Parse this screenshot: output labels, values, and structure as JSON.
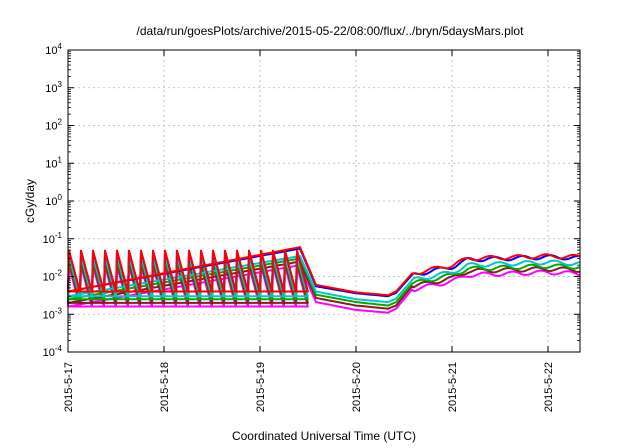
{
  "chart_data": {
    "type": "line",
    "title": "/data/run/goesPlots/archive/2015-05-22/08:00/flux/../bryn/5daysMars.plot",
    "xlabel": "Coordinated Universal Time (UTC)",
    "ylabel": "cGy/day",
    "y_scale": "log",
    "ylim": [
      0.0001,
      10000
    ],
    "xlim": [
      "2015-05-17 00:00",
      "2015-05-22 08:00"
    ],
    "x_ticks": [
      "2015-5-17",
      "2015-5-18",
      "2015-5-19",
      "2015-5-20",
      "2015-5-21",
      "2015-5-22"
    ],
    "y_ticks": [
      {
        "base": "10",
        "exp": "-4",
        "value": 0.0001
      },
      {
        "base": "10",
        "exp": "-3",
        "value": 0.001
      },
      {
        "base": "10",
        "exp": "-2",
        "value": 0.01
      },
      {
        "base": "10",
        "exp": "-1",
        "value": 0.1
      },
      {
        "base": "10",
        "exp": "0",
        "value": 1
      },
      {
        "base": "10",
        "exp": "1",
        "value": 10
      },
      {
        "base": "10",
        "exp": "2",
        "value": 100
      },
      {
        "base": "10",
        "exp": "3",
        "value": 1000
      },
      {
        "base": "10",
        "exp": "4",
        "value": 10000
      }
    ],
    "grid": true,
    "legend": "none",
    "series": [
      {
        "color": "#ff0000",
        "values": [
          [
            "2015-05-17 00:00",
            0.004
          ],
          [
            "2015-05-19 10:00",
            0.06
          ],
          [
            "2015-05-19 14:00",
            0.006
          ],
          [
            "2015-05-20 00:00",
            0.0038
          ],
          [
            "2015-05-20 08:00",
            0.0032
          ],
          [
            "2015-05-20 10:00",
            0.004
          ],
          [
            "2015-05-20 14:00",
            0.012
          ],
          [
            "2015-05-21 00:00",
            0.02
          ],
          [
            "2015-05-21 04:00",
            0.03
          ],
          [
            "2015-05-22 00:00",
            0.035
          ],
          [
            "2015-05-22 08:00",
            0.033
          ]
        ]
      },
      {
        "color": "#0000ff",
        "values": [
          [
            "2015-05-17 00:00",
            0.004
          ],
          [
            "2015-05-19 10:00",
            0.055
          ],
          [
            "2015-05-19 14:00",
            0.0055
          ],
          [
            "2015-05-20 00:00",
            0.0036
          ],
          [
            "2015-05-20 08:00",
            0.003
          ],
          [
            "2015-05-20 10:00",
            0.0037
          ],
          [
            "2015-05-20 14:00",
            0.011
          ],
          [
            "2015-05-21 00:00",
            0.018
          ],
          [
            "2015-05-21 04:00",
            0.028
          ],
          [
            "2015-05-22 00:00",
            0.033
          ],
          [
            "2015-05-22 08:00",
            0.031
          ]
        ]
      },
      {
        "color": "#00c8c8",
        "values": [
          [
            "2015-05-17 00:00",
            0.003
          ],
          [
            "2015-05-19 10:00",
            0.035
          ],
          [
            "2015-05-19 14:00",
            0.004
          ],
          [
            "2015-05-20 00:00",
            0.0025
          ],
          [
            "2015-05-20 08:00",
            0.0021
          ],
          [
            "2015-05-20 10:00",
            0.0026
          ],
          [
            "2015-05-20 14:00",
            0.008
          ],
          [
            "2015-05-21 00:00",
            0.013
          ],
          [
            "2015-05-21 04:00",
            0.02
          ],
          [
            "2015-05-22 00:00",
            0.024
          ],
          [
            "2015-05-22 08:00",
            0.022
          ]
        ]
      },
      {
        "color": "#00aa00",
        "values": [
          [
            "2015-05-17 00:00",
            0.0025
          ],
          [
            "2015-05-19 10:00",
            0.03
          ],
          [
            "2015-05-19 14:00",
            0.0033
          ],
          [
            "2015-05-20 00:00",
            0.0021
          ],
          [
            "2015-05-20 08:00",
            0.0017
          ],
          [
            "2015-05-20 10:00",
            0.0021
          ],
          [
            "2015-05-20 14:00",
            0.0065
          ],
          [
            "2015-05-21 00:00",
            0.011
          ],
          [
            "2015-05-21 04:00",
            0.016
          ],
          [
            "2015-05-22 00:00",
            0.019
          ],
          [
            "2015-05-22 08:00",
            0.018
          ]
        ]
      },
      {
        "color": "#8b1a1a",
        "values": [
          [
            "2015-05-17 00:00",
            0.002
          ],
          [
            "2015-05-19 10:00",
            0.025
          ],
          [
            "2015-05-19 14:00",
            0.0027
          ],
          [
            "2015-05-20 00:00",
            0.0017
          ],
          [
            "2015-05-20 08:00",
            0.0014
          ],
          [
            "2015-05-20 10:00",
            0.0017
          ],
          [
            "2015-05-20 14:00",
            0.0055
          ],
          [
            "2015-05-21 00:00",
            0.009
          ],
          [
            "2015-05-21 04:00",
            0.014
          ],
          [
            "2015-05-22 00:00",
            0.016
          ],
          [
            "2015-05-22 08:00",
            0.015
          ]
        ]
      },
      {
        "color": "#ff00ff",
        "values": [
          [
            "2015-05-17 00:00",
            0.0016
          ],
          [
            "2015-05-19 10:00",
            0.02
          ],
          [
            "2015-05-19 14:00",
            0.0021
          ],
          [
            "2015-05-20 00:00",
            0.0013
          ],
          [
            "2015-05-20 08:00",
            0.0011
          ],
          [
            "2015-05-20 10:00",
            0.0014
          ],
          [
            "2015-05-20 14:00",
            0.0045
          ],
          [
            "2015-05-21 00:00",
            0.0075
          ],
          [
            "2015-05-21 04:00",
            0.011
          ],
          [
            "2015-05-22 00:00",
            0.013
          ],
          [
            "2015-05-22 08:00",
            0.012
          ]
        ]
      }
    ]
  }
}
